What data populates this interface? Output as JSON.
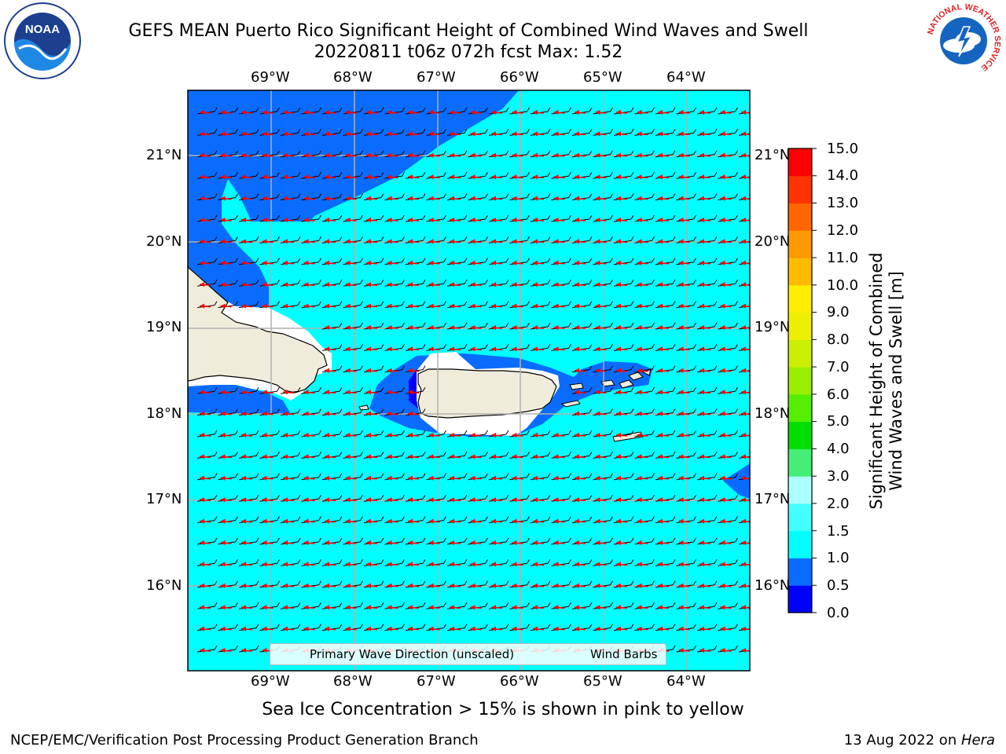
{
  "title": {
    "line1": "GEFS MEAN Puerto Rico Significant Height of Combined Wind Waves and Swell",
    "line2": "20220811 t06z 072h fcst   Max: 1.52"
  },
  "logos": {
    "left": {
      "name": "noaa-logo",
      "text": "NOAA",
      "ring_text": "NATIONAL OCEANIC AND ATMOSPHERIC ADMINISTRATION · U.S. DEPARTMENT OF COMMERCE"
    },
    "right": {
      "name": "nws-logo",
      "ring_text": "NATIONAL WEATHER SERVICE"
    }
  },
  "map": {
    "region": "Puerto Rico",
    "lon_ticks": [
      "69°W",
      "68°W",
      "67°W",
      "66°W",
      "65°W",
      "64°W"
    ],
    "lat_ticks": [
      "21°N",
      "20°N",
      "19°N",
      "18°N",
      "17°N",
      "16°N"
    ],
    "lon_range": [
      -70.0,
      -63.25
    ],
    "lat_range": [
      15.0,
      21.75
    ],
    "colors": {
      "ocean_0p5_1p0": "#0a6cff",
      "ocean_1p0_1p5": "#00ffff",
      "land": "#efecdc",
      "gridline": "#b0b0b0",
      "wave_arrow": "#ff0000",
      "wind_barb": "#000000"
    }
  },
  "colorbar": {
    "title_line1": "Significant Height of Combined",
    "title_line2": "Wind Waves and Swell [m]",
    "labels": [
      "15.0",
      "14.0",
      "13.0",
      "12.0",
      "11.0",
      "10.0",
      "9.0",
      "8.0",
      "7.0",
      "6.0",
      "5.0",
      "4.0",
      "3.0",
      "2.0",
      "1.5",
      "1.0",
      "0.5",
      "0.0"
    ],
    "bins": [
      {
        "range": "0.0-0.5",
        "color": "#0000ff"
      },
      {
        "range": "0.5-1.0",
        "color": "#0a6cff"
      },
      {
        "range": "1.0-1.5",
        "color": "#00ffff"
      },
      {
        "range": "1.5-2.0",
        "color": "#44ffff"
      },
      {
        "range": "2.0-3.0",
        "color": "#aaffff"
      },
      {
        "range": "3.0-4.0",
        "color": "#44ee77"
      },
      {
        "range": "4.0-5.0",
        "color": "#00dd00"
      },
      {
        "range": "5.0-6.0",
        "color": "#55ee00"
      },
      {
        "range": "6.0-7.0",
        "color": "#99ee00"
      },
      {
        "range": "7.0-8.0",
        "color": "#ccee00"
      },
      {
        "range": "8.0-9.0",
        "color": "#eeee00"
      },
      {
        "range": "9.0-10.0",
        "color": "#ffee00"
      },
      {
        "range": "10.0-11.0",
        "color": "#ffbb00"
      },
      {
        "range": "11.0-12.0",
        "color": "#ff9900"
      },
      {
        "range": "12.0-13.0",
        "color": "#ff6600"
      },
      {
        "range": "13.0-14.0",
        "color": "#ff3300"
      },
      {
        "range": "14.0-15.0",
        "color": "#ff0000"
      }
    ]
  },
  "legend": {
    "wave_label": "Primary Wave Direction (unscaled)",
    "wind_label": "Wind Barbs"
  },
  "sea_ice_note": "Sea Ice Concentration > 15% is shown in pink to yellow",
  "footer": {
    "left": "NCEP/EMC/Verification Post Processing Product Generation Branch",
    "date": "13 Aug 2022 on ",
    "host": "Hera"
  }
}
